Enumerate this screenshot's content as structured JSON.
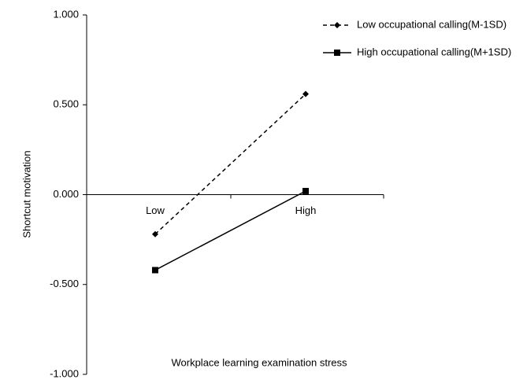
{
  "chart_data": {
    "type": "line",
    "x_label": "Workplace learning examination stress",
    "y_label": "Shortcut motivation",
    "categories": [
      "Low",
      "High"
    ],
    "series": [
      {
        "name": "Low occupational calling(M-1SD)",
        "color": "#000000",
        "line_style": "dashed",
        "marker": "diamond",
        "values": [
          -0.22,
          0.56
        ]
      },
      {
        "name": "High occupational calling(M+1SD)",
        "color": "#000000",
        "line_style": "solid",
        "marker": "square",
        "values": [
          -0.42,
          0.02
        ]
      }
    ],
    "ylim": [
      -1,
      1
    ],
    "yticks": [
      {
        "value": -1,
        "label": "-1.000"
      },
      {
        "value": -0.5,
        "label": "-0.500"
      },
      {
        "value": 0,
        "label": "0.000"
      },
      {
        "value": 0.5,
        "label": "0.500"
      },
      {
        "value": 1,
        "label": "1.000"
      }
    ],
    "grid": false,
    "legend": "top-right"
  }
}
